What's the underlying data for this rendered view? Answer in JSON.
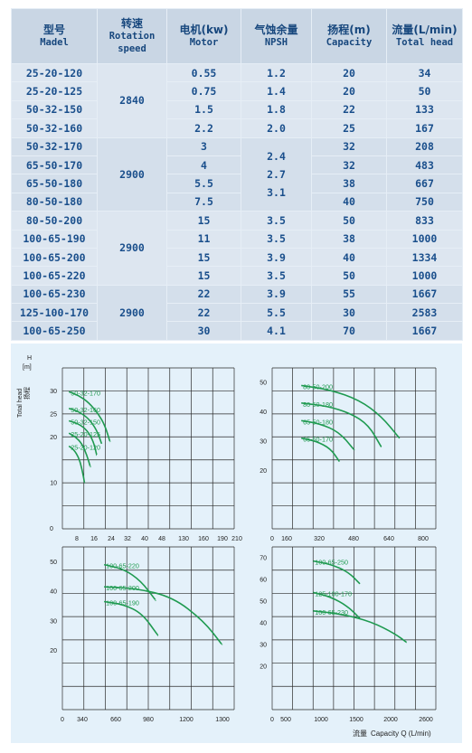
{
  "table": {
    "headers": [
      {
        "cn": "型号",
        "en": "Madel"
      },
      {
        "cn": "转速",
        "en": "Rotation speed"
      },
      {
        "cn": "电机(kw)",
        "en": "Motor"
      },
      {
        "cn": "气蚀余量",
        "en": "NPSH"
      },
      {
        "cn": "扬程(m)",
        "en": "Capacity"
      },
      {
        "cn": "流量(L/min)",
        "en": "Total head"
      }
    ],
    "groups": [
      {
        "speed": "2840",
        "rows": [
          {
            "model": "25-20-120",
            "motor": "0.55",
            "npsh": "1.2",
            "capacity": "20",
            "head": "34"
          },
          {
            "model": "25-20-125",
            "motor": "0.75",
            "npsh": "1.4",
            "capacity": "20",
            "head": "50"
          },
          {
            "model": "50-32-150",
            "motor": "1.5",
            "npsh": "1.8",
            "capacity": "22",
            "head": "133"
          },
          {
            "model": "50-32-160",
            "motor": "2.2",
            "npsh": "2.0",
            "capacity": "25",
            "head": "167"
          }
        ]
      },
      {
        "speed": "2900",
        "npsh_merged": [
          "2.4",
          "2.7",
          "3.1"
        ],
        "rows": [
          {
            "model": "50-32-170",
            "motor": "3",
            "capacity": "32",
            "head": "208"
          },
          {
            "model": "65-50-170",
            "motor": "4",
            "capacity": "32",
            "head": "483"
          },
          {
            "model": "65-50-180",
            "motor": "5.5",
            "capacity": "38",
            "head": "667"
          },
          {
            "model": "80-50-180",
            "motor": "7.5",
            "capacity": "40",
            "head": "750"
          }
        ]
      },
      {
        "speed": "2900",
        "rows": [
          {
            "model": "80-50-200",
            "motor": "15",
            "npsh": "3.5",
            "capacity": "50",
            "head": "833"
          },
          {
            "model": "100-65-190",
            "motor": "11",
            "npsh": "3.5",
            "capacity": "38",
            "head": "1000"
          },
          {
            "model": "100-65-200",
            "motor": "15",
            "npsh": "3.9",
            "capacity": "40",
            "head": "1334"
          },
          {
            "model": "100-65-220",
            "motor": "15",
            "npsh": "3.5",
            "capacity": "50",
            "head": "1000"
          }
        ]
      },
      {
        "speed": "2900",
        "rows": [
          {
            "model": "100-65-230",
            "motor": "22",
            "npsh": "3.9",
            "capacity": "55",
            "head": "1667"
          },
          {
            "model": "125-100-170",
            "motor": "22",
            "npsh": "5.5",
            "capacity": "30",
            "head": "2583"
          },
          {
            "model": "100-65-250",
            "motor": "30",
            "npsh": "4.1",
            "capacity": "70",
            "head": "1667"
          }
        ]
      }
    ]
  },
  "chart_data": [
    {
      "type": "line",
      "ylabel_top": "H",
      "ylabel_unit": "[m]",
      "ylabel_side": "Total head",
      "ylabel_side_cn": "扬程",
      "xticks": [
        "8",
        "16",
        "24",
        "32",
        "40",
        "48",
        "130",
        "160",
        "190",
        "210"
      ],
      "yticks": [
        10,
        20,
        25,
        30
      ],
      "origin_label": "0",
      "series": [
        {
          "name": "50-32-170",
          "x": [
            8,
            20,
            32,
            44,
            52,
            58
          ],
          "y": [
            29.8,
            29,
            27.5,
            25,
            22.5,
            19
          ]
        },
        {
          "name": "50-32-160",
          "x": [
            8,
            20,
            32,
            42,
            48
          ],
          "y": [
            26.2,
            25.5,
            24,
            21.5,
            18.5
          ]
        },
        {
          "name": "50-32-150",
          "x": [
            8,
            20,
            30,
            38,
            42
          ],
          "y": [
            23.5,
            22.8,
            21.5,
            19,
            16
          ]
        },
        {
          "name": "25-20-125",
          "x": [
            8,
            16,
            24,
            30,
            34
          ],
          "y": [
            20.8,
            20,
            18.5,
            16,
            13.5
          ]
        },
        {
          "name": "25-20-120",
          "x": [
            8,
            14,
            20,
            24,
            27
          ],
          "y": [
            18,
            17.2,
            15.5,
            13,
            10
          ]
        }
      ]
    },
    {
      "type": "line",
      "xticks": [
        "0",
        "160",
        "320",
        "480",
        "640",
        "800"
      ],
      "yticks": [
        20,
        30,
        40,
        50
      ],
      "series": [
        {
          "name": "80-50-200",
          "x": [
            160,
            320,
            480,
            600,
            700
          ],
          "y": [
            49,
            47.5,
            44,
            38.5,
            31
          ]
        },
        {
          "name": "80-50-180",
          "x": [
            160,
            300,
            430,
            530,
            600
          ],
          "y": [
            43,
            42,
            39.5,
            35.5,
            28
          ]
        },
        {
          "name": "65-50-180",
          "x": [
            160,
            260,
            370,
            450
          ],
          "y": [
            37,
            36,
            33,
            27
          ]
        },
        {
          "name": "65-50-170",
          "x": [
            160,
            240,
            320,
            370
          ],
          "y": [
            31,
            30,
            27.5,
            23
          ]
        }
      ]
    },
    {
      "type": "line",
      "xticks": [
        "0",
        "340",
        "660",
        "980",
        "1200",
        "1300"
      ],
      "yticks": [
        20,
        30,
        40,
        50
      ],
      "series": [
        {
          "name": "100-65-220",
          "x": [
            340,
            500,
            640,
            760
          ],
          "y": [
            49,
            47.5,
            43.5,
            37
          ]
        },
        {
          "name": "100-65-200",
          "x": [
            340,
            600,
            900,
            1150,
            1300
          ],
          "y": [
            41.5,
            41,
            38,
            30,
            22
          ]
        },
        {
          "name": "100-65-190",
          "x": [
            340,
            500,
            650,
            780
          ],
          "y": [
            36.5,
            35.5,
            32.5,
            25
          ]
        }
      ]
    },
    {
      "type": "line",
      "xticks": [
        "0",
        "500",
        "1000",
        "1500",
        "2000",
        "2600"
      ],
      "yticks": [
        20,
        30,
        40,
        50,
        60,
        70
      ],
      "xlabel_cn": "流量",
      "xlabel": "Capacity Q (L/min)",
      "series": [
        {
          "name": "100-65-250",
          "x": [
            700,
            1000,
            1300,
            1500
          ],
          "y": [
            68.5,
            67,
            63.5,
            58
          ]
        },
        {
          "name": "125-100-170",
          "x": [
            700,
            1000,
            1300,
            1500
          ],
          "y": [
            54,
            52,
            47.5,
            42
          ]
        },
        {
          "name": "100-65-230",
          "x": [
            700,
            1200,
            1700,
            2100,
            2300
          ],
          "y": [
            45.5,
            44,
            40.5,
            35,
            31
          ]
        }
      ]
    }
  ],
  "colors": {
    "curve": "#1f9a50",
    "grid": "#2b2b2b",
    "label": "#2d3d8f"
  }
}
